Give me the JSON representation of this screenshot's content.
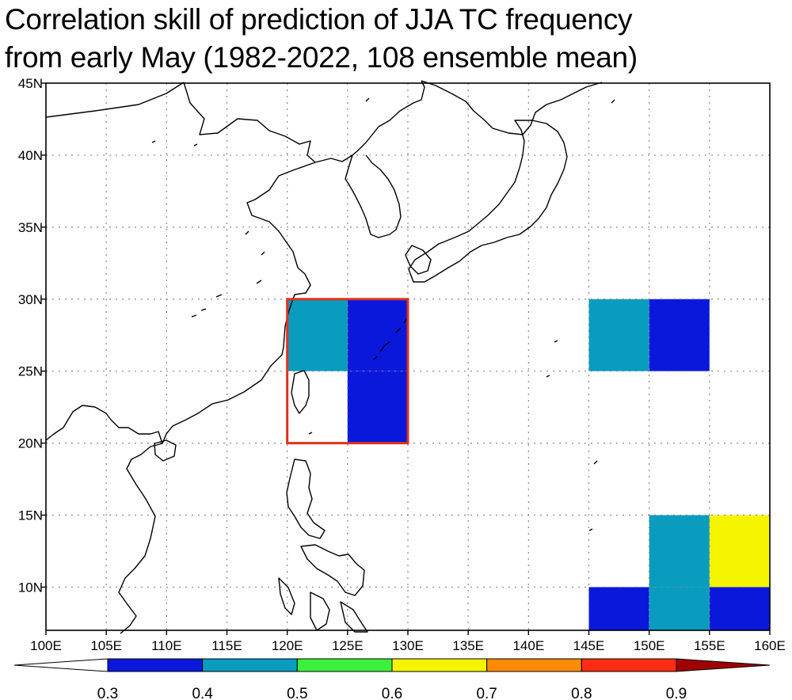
{
  "title": {
    "line1": "Correlation skill of prediction of JJA TC frequency",
    "line2": "from early May (1982-2022, 108 ensemble mean)"
  },
  "map": {
    "lon_range": [
      100,
      160
    ],
    "lat_range": [
      7,
      45
    ],
    "lon_ticks": [
      "100E",
      "105E",
      "110E",
      "115E",
      "120E",
      "125E",
      "130E",
      "135E",
      "140E",
      "145E",
      "150E",
      "155E",
      "160E"
    ],
    "lat_ticks": [
      "10N",
      "15N",
      "20N",
      "25N",
      "30N",
      "35N",
      "40N",
      "45N"
    ],
    "cells": [
      {
        "lon": [
          120,
          125
        ],
        "lat": [
          25,
          30
        ],
        "value": 0.45,
        "color": "#0a9cbf"
      },
      {
        "lon": [
          125,
          130
        ],
        "lat": [
          25,
          30
        ],
        "value": 0.35,
        "color": "#0a18dc"
      },
      {
        "lon": [
          125,
          130
        ],
        "lat": [
          20,
          25
        ],
        "value": 0.35,
        "color": "#0a18dc"
      },
      {
        "lon": [
          145,
          150
        ],
        "lat": [
          25,
          30
        ],
        "value": 0.45,
        "color": "#0a9cbf"
      },
      {
        "lon": [
          150,
          155
        ],
        "lat": [
          25,
          30
        ],
        "value": 0.35,
        "color": "#0a18dc"
      },
      {
        "lon": [
          150,
          155
        ],
        "lat": [
          10,
          15
        ],
        "value": 0.45,
        "color": "#0a9cbf"
      },
      {
        "lon": [
          155,
          160
        ],
        "lat": [
          10,
          15
        ],
        "value": 0.65,
        "color": "#f5f500"
      },
      {
        "lon": [
          145,
          150
        ],
        "lat": [
          7,
          10
        ],
        "value": 0.35,
        "color": "#0a18dc"
      },
      {
        "lon": [
          150,
          155
        ],
        "lat": [
          7,
          10
        ],
        "value": 0.45,
        "color": "#0a9cbf"
      },
      {
        "lon": [
          155,
          160
        ],
        "lat": [
          7,
          10
        ],
        "value": 0.35,
        "color": "#0a18dc"
      }
    ],
    "box": {
      "lon": [
        120,
        130
      ],
      "lat": [
        20,
        30
      ],
      "color": "#e0321e"
    }
  },
  "colorbar": {
    "labels": [
      "0.3",
      "0.4",
      "0.5",
      "0.6",
      "0.7",
      "0.8",
      "0.9"
    ],
    "colors": [
      "#ffffff",
      "#0a18dc",
      "#0a9cbf",
      "#3cf03c",
      "#f5f500",
      "#ff8c00",
      "#ff2d14",
      "#a00000"
    ]
  }
}
